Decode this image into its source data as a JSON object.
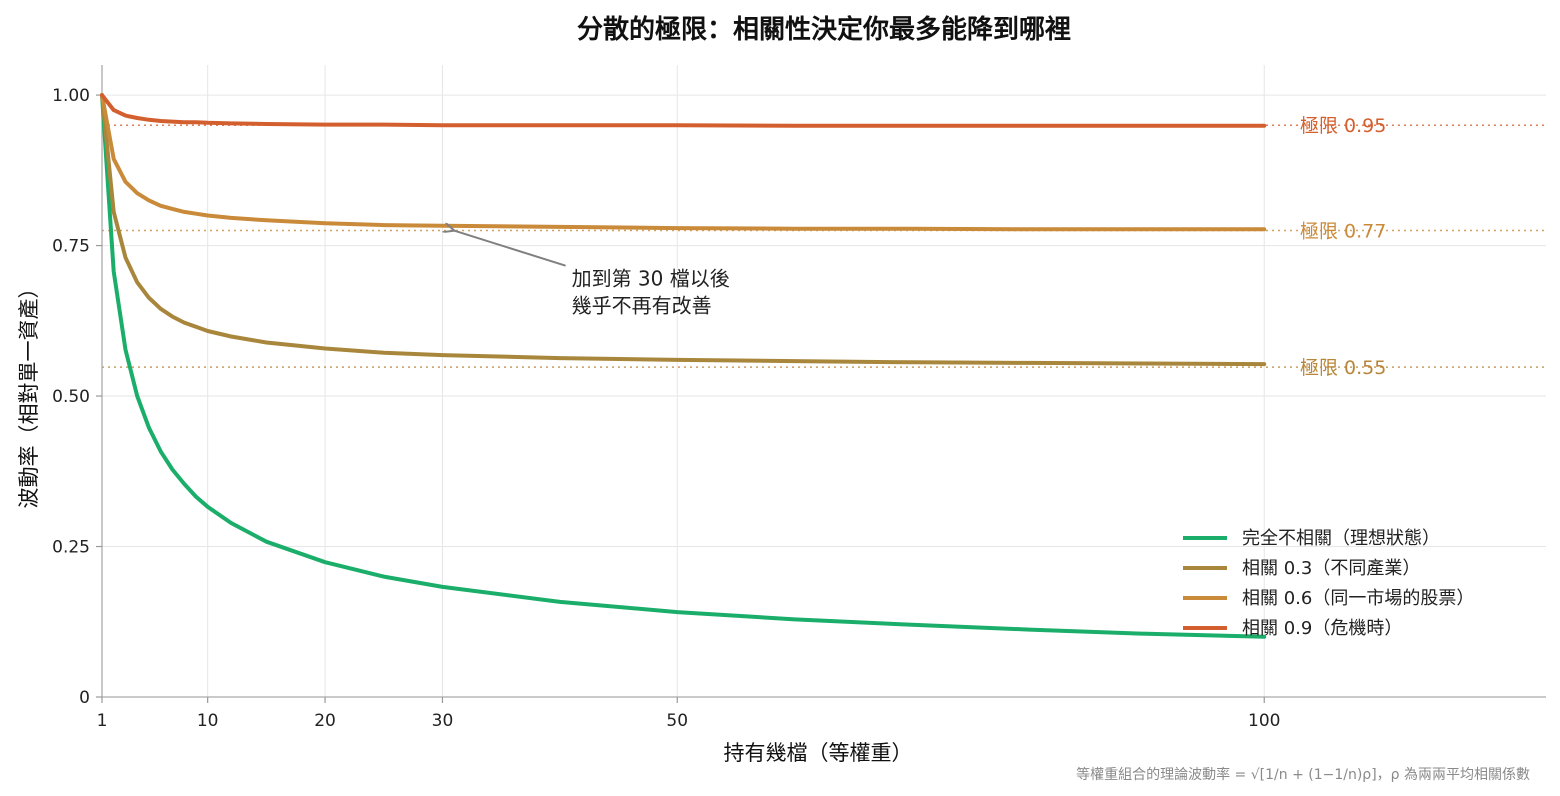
{
  "chart_data": {
    "type": "line",
    "title": "分散的極限：相關性決定你最多能降到哪裡",
    "xlabel": "持有幾檔（等權重）",
    "ylabel": "波動率（相對單一資產）",
    "footnote": "等權重組合的理論波動率 = √[1/n + (1−1/n)ρ]，ρ 為兩兩平均相關係數",
    "xlim": [
      1,
      124
    ],
    "ylim": [
      0,
      1.05
    ],
    "xticks": [
      1,
      10,
      20,
      30,
      50,
      100
    ],
    "yticks": [
      0,
      0.25,
      0.5,
      0.75,
      1.0
    ],
    "ytick_labels": [
      "0",
      "0.25",
      "0.50",
      "0.75",
      "1.00"
    ],
    "grid": true,
    "legend_position": "lower-right",
    "series": [
      {
        "name": "完全不相關（理想狀態）",
        "rho": 0,
        "color": "#1aae6a",
        "x": [
          1,
          2,
          3,
          4,
          5,
          6,
          7,
          8,
          9,
          10,
          12,
          15,
          20,
          25,
          30,
          40,
          50,
          60,
          70,
          80,
          90,
          100
        ],
        "y": [
          1.0,
          0.707,
          0.577,
          0.5,
          0.447,
          0.408,
          0.378,
          0.354,
          0.333,
          0.316,
          0.289,
          0.258,
          0.224,
          0.2,
          0.183,
          0.158,
          0.141,
          0.129,
          0.12,
          0.112,
          0.105,
          0.1
        ]
      },
      {
        "name": "相關 0.3（不同產業）",
        "rho": 0.3,
        "color": "#a8873c",
        "x": [
          1,
          2,
          3,
          4,
          5,
          6,
          7,
          8,
          9,
          10,
          12,
          15,
          20,
          25,
          30,
          40,
          50,
          60,
          70,
          80,
          90,
          100
        ],
        "y": [
          1.0,
          0.806,
          0.73,
          0.689,
          0.663,
          0.645,
          0.632,
          0.622,
          0.615,
          0.608,
          0.599,
          0.589,
          0.579,
          0.572,
          0.568,
          0.563,
          0.56,
          0.558,
          0.556,
          0.555,
          0.554,
          0.553
        ]
      },
      {
        "name": "相關 0.6（同一市場的股票）",
        "rho": 0.6,
        "color": "#c98a3a",
        "x": [
          1,
          2,
          3,
          4,
          5,
          6,
          7,
          8,
          9,
          10,
          12,
          15,
          20,
          25,
          30,
          40,
          50,
          60,
          70,
          80,
          90,
          100
        ],
        "y": [
          1.0,
          0.894,
          0.856,
          0.837,
          0.825,
          0.816,
          0.811,
          0.806,
          0.803,
          0.8,
          0.796,
          0.792,
          0.787,
          0.784,
          0.783,
          0.781,
          0.779,
          0.778,
          0.778,
          0.777,
          0.777,
          0.777
        ]
      },
      {
        "name": "相關 0.9（危機時）",
        "rho": 0.9,
        "color": "#d45f2e",
        "x": [
          1,
          2,
          3,
          4,
          5,
          6,
          7,
          8,
          9,
          10,
          12,
          15,
          20,
          25,
          30,
          40,
          50,
          60,
          70,
          80,
          90,
          100
        ],
        "y": [
          1.0,
          0.975,
          0.966,
          0.962,
          0.959,
          0.957,
          0.956,
          0.955,
          0.955,
          0.954,
          0.953,
          0.952,
          0.951,
          0.951,
          0.95,
          0.95,
          0.95,
          0.949,
          0.949,
          0.949,
          0.949,
          0.949
        ]
      }
    ],
    "limit_lines": [
      {
        "value": 0.95,
        "label": "極限 0.95",
        "color": "#d45f2e"
      },
      {
        "value": 0.775,
        "label": "極限 0.77",
        "color": "#c98a3a"
      },
      {
        "value": 0.548,
        "label": "極限 0.55",
        "color": "#b8863a"
      }
    ],
    "annotation": {
      "lines": [
        "加到第 30 檔以後",
        "幾乎不再有改善"
      ],
      "target_x": 30,
      "target_y": 0.783,
      "text_x": 41,
      "text_y": 0.69
    }
  }
}
